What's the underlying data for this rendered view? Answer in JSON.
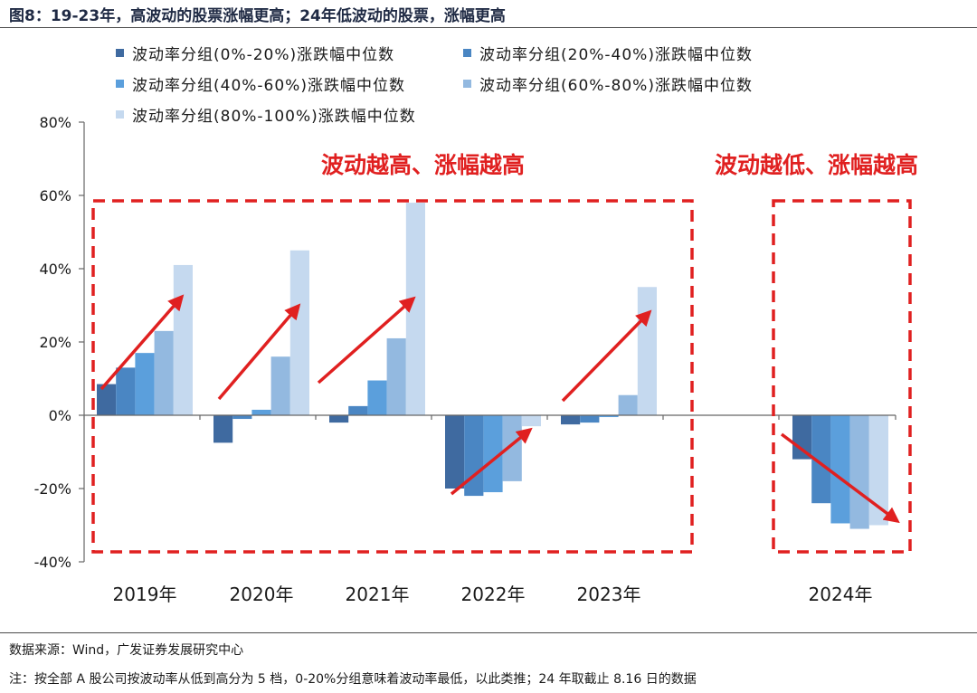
{
  "title": "图8：19-23年，高波动的股票涨幅更高；24年低波动的股票，涨幅更高",
  "source": "数据来源：Wind，广发证券发展研究中心",
  "note": "注：按全部 A 股公司按波动率从低到高分为 5 档，0-20%分组意味着波动率最低，以此类推；24 年取截止 8.16 日的数据",
  "annotations": {
    "left_box": "波动越高、涨幅越高",
    "right_box": "波动越低、涨幅越高"
  },
  "colors": {
    "annotation_red": "#e02020",
    "series": [
      "#3f6aa0",
      "#4a86c3",
      "#5b9fdc",
      "#93b9e0",
      "#c5d9ef"
    ]
  },
  "chart_data": {
    "type": "bar",
    "categories": [
      "2019年",
      "2020年",
      "2021年",
      "2022年",
      "2023年",
      "2024年"
    ],
    "series": [
      {
        "name": "波动率分组(0%-20%)涨跌幅中位数",
        "values": [
          8.5,
          -7.5,
          -2.0,
          -20.0,
          -2.5,
          -12.0
        ]
      },
      {
        "name": "波动率分组(20%-40%)涨跌幅中位数",
        "values": [
          13.0,
          -1.0,
          2.5,
          -22.0,
          -2.0,
          -24.0
        ]
      },
      {
        "name": "波动率分组(40%-60%)涨跌幅中位数",
        "values": [
          17.0,
          1.5,
          9.5,
          -21.0,
          -0.5,
          -29.5
        ]
      },
      {
        "name": "波动率分组(60%-80%)涨跌幅中位数",
        "values": [
          23.0,
          16.0,
          21.0,
          -18.0,
          5.5,
          -31.0
        ]
      },
      {
        "name": "波动率分组(80%-100%)涨跌幅中位数",
        "values": [
          41.0,
          45.0,
          58.0,
          -3.0,
          35.0,
          -30.0
        ]
      }
    ],
    "ylim": [
      -40,
      80
    ],
    "yticks": [
      "-40%",
      "-20%",
      "0%",
      "20%",
      "40%",
      "60%",
      "80%"
    ],
    "ytick_values": [
      -40,
      -20,
      0,
      20,
      40,
      60,
      80
    ],
    "legend_position": "top",
    "grid": false
  }
}
